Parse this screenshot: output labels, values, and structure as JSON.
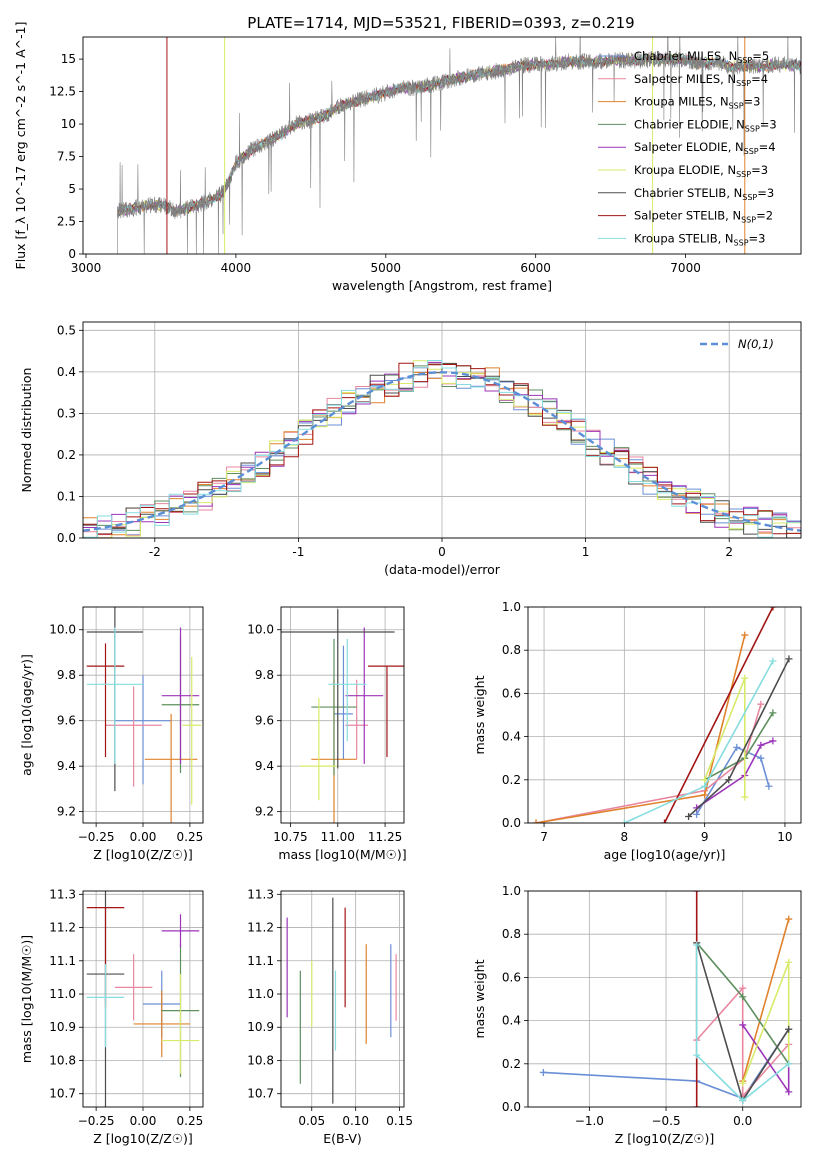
{
  "figure": {
    "title": "PLATE=1714, MJD=53521, FIBERID=0393, z=0.219"
  },
  "colors": {
    "Chabrier MILES": "#6b8fd6",
    "Salpeter MILES": "#e8879f",
    "Kroupa MILES": "#e0822b",
    "Chabrier ELODIE": "#5e8f5e",
    "Salpeter ELODIE": "#9b34b8",
    "Kroupa ELODIE": "#d9ea6a",
    "Chabrier STELIB": "#4d4d4d",
    "Salpeter STELIB": "#a31515",
    "Kroupa STELIB": "#86dde0",
    "gaussian": "#5b8fd6",
    "data": "#808080"
  },
  "chart_data": [
    {
      "id": "spectrum",
      "type": "line",
      "title": "PLATE=1714, MJD=53521, FIBERID=0393, z=0.219",
      "xlabel": "wavelength [Angstrom, rest frame]",
      "ylabel": "Flux [f_λ 10^-17 erg cm^-2 s^-1 A^-1]",
      "xlim": [
        2980,
        7770
      ],
      "ylim": [
        0,
        16.7
      ],
      "xticks": [
        3000,
        4000,
        5000,
        6000,
        7000
      ],
      "yticks": [
        0.0,
        2.5,
        5.0,
        7.5,
        10.0,
        12.5,
        15.0
      ],
      "grid": false,
      "legend_position": "top-right",
      "continuum": [
        [
          3210,
          3.3
        ],
        [
          3300,
          3.5
        ],
        [
          3450,
          3.8
        ],
        [
          3520,
          3.7
        ],
        [
          3600,
          3.3
        ],
        [
          3700,
          3.6
        ],
        [
          3800,
          4.0
        ],
        [
          3900,
          4.6
        ],
        [
          3950,
          5.5
        ],
        [
          4000,
          7.0
        ],
        [
          4100,
          8.0
        ],
        [
          4200,
          8.6
        ],
        [
          4300,
          9.2
        ],
        [
          4400,
          10.0
        ],
        [
          4500,
          10.3
        ],
        [
          4600,
          10.7
        ],
        [
          4700,
          11.4
        ],
        [
          4800,
          11.8
        ],
        [
          4900,
          12.1
        ],
        [
          5000,
          12.4
        ],
        [
          5100,
          12.8
        ],
        [
          5200,
          12.8
        ],
        [
          5300,
          13.0
        ],
        [
          5400,
          13.3
        ],
        [
          5500,
          13.6
        ],
        [
          5600,
          13.8
        ],
        [
          5700,
          14.0
        ],
        [
          5800,
          14.2
        ],
        [
          5900,
          14.5
        ],
        [
          6000,
          14.6
        ],
        [
          6100,
          14.6
        ],
        [
          6200,
          14.8
        ],
        [
          6300,
          14.8
        ],
        [
          6400,
          14.8
        ],
        [
          6500,
          14.9
        ],
        [
          6600,
          14.9
        ],
        [
          6700,
          14.9
        ],
        [
          6800,
          15.0
        ],
        [
          6900,
          15.0
        ],
        [
          7000,
          14.9
        ],
        [
          7100,
          14.7
        ],
        [
          7200,
          14.8
        ],
        [
          7300,
          14.4
        ],
        [
          7400,
          14.5
        ],
        [
          7500,
          14.4
        ],
        [
          7600,
          14.6
        ],
        [
          7770,
          14.5
        ]
      ],
      "series": [
        {
          "name": "Chabrier MILES",
          "nssp": "5"
        },
        {
          "name": "Salpeter MILES",
          "nssp": "4"
        },
        {
          "name": "Kroupa MILES",
          "nssp": "3"
        },
        {
          "name": "Chabrier ELODIE",
          "nssp": "3"
        },
        {
          "name": "Salpeter ELODIE",
          "nssp": "4"
        },
        {
          "name": "Kroupa ELODIE",
          "nssp": "3"
        },
        {
          "name": "Chabrier STELIB",
          "nssp": "3"
        },
        {
          "name": "Salpeter STELIB",
          "nssp": "2"
        },
        {
          "name": "Kroupa STELIB",
          "nssp": "3"
        }
      ]
    },
    {
      "id": "residuals",
      "type": "line",
      "xlabel": "(data-model)/error",
      "ylabel": "Normed distribution",
      "xlim": [
        -2.5,
        2.5
      ],
      "ylim": [
        0,
        0.52
      ],
      "xticks": [
        -2,
        -1,
        0,
        1,
        2
      ],
      "yticks": [
        0.0,
        0.1,
        0.2,
        0.3,
        0.4,
        0.5
      ],
      "grid": true,
      "legend": "N(0,1)",
      "legend_position": "top-right"
    },
    {
      "id": "z-age",
      "type": "scatter",
      "xlabel": "Z [log10(Z/Z☉)]",
      "ylabel": "age [log10(age/yr)]",
      "xlim": [
        -0.32,
        0.32
      ],
      "ylim": [
        9.15,
        10.1
      ],
      "xticks": [
        -0.25,
        0.0,
        0.25
      ],
      "xticklabels": [
        "−0.25",
        "0.00",
        "0.25"
      ],
      "yticks": [
        9.2,
        9.4,
        9.6,
        9.8,
        10.0
      ],
      "grid": true,
      "points": [
        {
          "series": "Chabrier MILES",
          "x": 0.0,
          "y": 9.6,
          "xerr": 0.15,
          "yerr": [
            0.28,
            0.2
          ]
        },
        {
          "series": "Salpeter MILES",
          "x": -0.05,
          "y": 9.58,
          "xerr": 0.15,
          "yerr": [
            0.27,
            0.17
          ]
        },
        {
          "series": "Kroupa MILES",
          "x": 0.15,
          "y": 9.43,
          "xerr": 0.14,
          "yerr": [
            0.5,
            0.2
          ]
        },
        {
          "series": "Chabrier ELODIE",
          "x": 0.2,
          "y": 9.67,
          "xerr": 0.1,
          "yerr": [
            0.3,
            0.3
          ]
        },
        {
          "series": "Salpeter ELODIE",
          "x": 0.2,
          "y": 9.71,
          "xerr": 0.1,
          "yerr": [
            0.3,
            0.3
          ]
        },
        {
          "series": "Kroupa ELODIE",
          "x": 0.26,
          "y": 9.58,
          "xerr": 0.05,
          "yerr": [
            0.35,
            0.3
          ]
        },
        {
          "series": "Chabrier STELIB",
          "x": -0.15,
          "y": 9.99,
          "xerr": 0.15,
          "yerr": [
            0.7,
            0.15
          ]
        },
        {
          "series": "Salpeter STELIB",
          "x": -0.2,
          "y": 9.84,
          "xerr": 0.1,
          "yerr": [
            0.4,
            0.1
          ]
        },
        {
          "series": "Kroupa STELIB",
          "x": -0.15,
          "y": 9.76,
          "xerr": 0.15,
          "yerr": [
            0.35,
            0.25
          ]
        }
      ]
    },
    {
      "id": "mass-age",
      "type": "scatter",
      "xlabel": "mass [log10(M/M☉)]",
      "ylabel": "",
      "xlim": [
        10.7,
        11.35
      ],
      "ylim": [
        9.15,
        10.1
      ],
      "xticks": [
        10.75,
        11.0,
        11.25
      ],
      "xticklabels": [
        "10.75",
        "11.00",
        "11.25"
      ],
      "yticks": [
        9.2,
        9.4,
        9.6,
        9.8,
        10.0
      ],
      "grid": true,
      "points": [
        {
          "series": "Chabrier MILES",
          "x": 11.03,
          "y": 9.63,
          "xerr": 0.05,
          "yerr": [
            0.2,
            0.3
          ]
        },
        {
          "series": "Salpeter MILES",
          "x": 11.1,
          "y": 9.58,
          "xerr": 0.06,
          "yerr": [
            0.15,
            0.2
          ]
        },
        {
          "series": "Kroupa MILES",
          "x": 10.98,
          "y": 9.43,
          "xerr": 0.12,
          "yerr": [
            0.3,
            0.35
          ]
        },
        {
          "series": "Chabrier ELODIE",
          "x": 10.98,
          "y": 9.66,
          "xerr": 0.12,
          "yerr": [
            0.3,
            0.3
          ]
        },
        {
          "series": "Salpeter ELODIE",
          "x": 11.14,
          "y": 9.71,
          "xerr": 0.1,
          "yerr": [
            0.3,
            0.3
          ]
        },
        {
          "series": "Kroupa ELODIE",
          "x": 10.9,
          "y": 9.4,
          "xerr": 0.1,
          "yerr": [
            0.15,
            0.3
          ]
        },
        {
          "series": "Chabrier STELIB",
          "x": 11.0,
          "y": 9.99,
          "xerr": 0.3,
          "yerr": [
            0.6,
            0.1
          ]
        },
        {
          "series": "Salpeter STELIB",
          "x": 11.26,
          "y": 9.84,
          "xerr": 0.1,
          "yerr": [
            0.4,
            0.0
          ]
        },
        {
          "series": "Kroupa STELIB",
          "x": 11.05,
          "y": 9.76,
          "xerr": 0.1,
          "yerr": [
            0.25,
            0.2
          ]
        }
      ]
    },
    {
      "id": "age-weight",
      "type": "line",
      "xlabel": "age [log10(age/yr)]",
      "ylabel": "mass weight",
      "xlim": [
        6.8,
        10.2
      ],
      "ylim": [
        0,
        1
      ],
      "xticks": [
        7,
        8,
        9,
        10
      ],
      "yticks": [
        0.0,
        0.2,
        0.4,
        0.6,
        0.8,
        1.0
      ],
      "grid": true,
      "series": [
        {
          "name": "Chabrier MILES",
          "points": [
            [
              8.9,
              0.04
            ],
            [
              9.4,
              0.35
            ],
            [
              9.7,
              0.3
            ],
            [
              9.8,
              0.17
            ]
          ]
        },
        {
          "name": "Salpeter MILES",
          "points": [
            [
              6.9,
              0.0
            ],
            [
              9.0,
              0.15
            ],
            [
              9.5,
              0.3
            ],
            [
              9.7,
              0.55
            ]
          ]
        },
        {
          "name": "Kroupa MILES",
          "points": [
            [
              6.9,
              0.0
            ],
            [
              9.0,
              0.13
            ],
            [
              9.5,
              0.87
            ]
          ]
        },
        {
          "name": "Chabrier ELODIE",
          "points": [
            [
              9.0,
              0.2
            ],
            [
              9.5,
              0.3
            ],
            [
              9.85,
              0.51
            ]
          ]
        },
        {
          "name": "Salpeter ELODIE",
          "points": [
            [
              8.9,
              0.07
            ],
            [
              9.5,
              0.22
            ],
            [
              9.7,
              0.36
            ],
            [
              9.85,
              0.38
            ]
          ]
        },
        {
          "name": "Kroupa ELODIE",
          "points": [
            [
              9.0,
              0.2
            ],
            [
              9.5,
              0.67
            ],
            [
              9.5,
              0.12
            ]
          ]
        },
        {
          "name": "Chabrier STELIB",
          "points": [
            [
              8.8,
              0.03
            ],
            [
              9.3,
              0.2
            ],
            [
              10.05,
              0.76
            ]
          ]
        },
        {
          "name": "Salpeter STELIB",
          "points": [
            [
              8.5,
              0.0
            ],
            [
              9.85,
              1.0
            ]
          ]
        },
        {
          "name": "Kroupa STELIB",
          "points": [
            [
              8.0,
              0.0
            ],
            [
              9.0,
              0.17
            ],
            [
              9.85,
              0.75
            ]
          ]
        }
      ]
    },
    {
      "id": "z-mass",
      "type": "scatter",
      "xlabel": "Z [log10(Z/Z☉)]",
      "ylabel": "mass [log10(M/M☉)]",
      "xlim": [
        -0.32,
        0.32
      ],
      "ylim": [
        10.66,
        11.31
      ],
      "xticks": [
        -0.25,
        0.0,
        0.25
      ],
      "xticklabels": [
        "−0.25",
        "0.00",
        "0.25"
      ],
      "yticks": [
        10.7,
        10.8,
        10.9,
        11.0,
        11.1,
        11.2,
        11.3
      ],
      "grid": true,
      "points": [
        {
          "series": "Chabrier MILES",
          "x": 0.1,
          "y": 10.97,
          "xerr": 0.1,
          "yerr": [
            0.1,
            0.1
          ]
        },
        {
          "series": "Salpeter MILES",
          "x": -0.05,
          "y": 11.02,
          "xerr": 0.1,
          "yerr": [
            0.1,
            0.1
          ]
        },
        {
          "series": "Kroupa MILES",
          "x": 0.1,
          "y": 10.91,
          "xerr": 0.15,
          "yerr": [
            0.1,
            0.1
          ]
        },
        {
          "series": "Chabrier ELODIE",
          "x": 0.2,
          "y": 10.95,
          "xerr": 0.1,
          "yerr": [
            0.2,
            0.2
          ]
        },
        {
          "series": "Salpeter ELODIE",
          "x": 0.2,
          "y": 11.19,
          "xerr": 0.1,
          "yerr": [
            0.05,
            0.05
          ]
        },
        {
          "series": "Kroupa ELODIE",
          "x": 0.2,
          "y": 10.86,
          "xerr": 0.1,
          "yerr": [
            0.1,
            0.2
          ]
        },
        {
          "series": "Chabrier STELIB",
          "x": -0.2,
          "y": 11.06,
          "xerr": 0.1,
          "yerr": [
            0.4,
            0.25
          ]
        },
        {
          "series": "Salpeter STELIB",
          "x": -0.2,
          "y": 11.26,
          "xerr": 0.1,
          "yerr": [
            0.3,
            0.0
          ]
        },
        {
          "series": "Kroupa STELIB",
          "x": -0.2,
          "y": 10.99,
          "xerr": 0.1,
          "yerr": [
            0.15,
            0.1
          ]
        }
      ]
    },
    {
      "id": "ebv-mass",
      "type": "scatter",
      "xlabel": "E(B-V)",
      "ylabel": "",
      "xlim": [
        0.015,
        0.155
      ],
      "ylim": [
        10.66,
        11.31
      ],
      "xticks": [
        0.05,
        0.1,
        0.15
      ],
      "xticklabels": [
        "0.05",
        "0.10",
        "0.15"
      ],
      "yticks": [
        10.7,
        10.8,
        10.9,
        11.0,
        11.1,
        11.2,
        11.3
      ],
      "grid": true,
      "points": [
        {
          "series": "Chabrier MILES",
          "x": 0.14,
          "y": 11.01,
          "yerr": [
            0.14,
            0.14
          ]
        },
        {
          "series": "Salpeter MILES",
          "x": 0.146,
          "y": 11.02,
          "yerr": [
            0.1,
            0.1
          ]
        },
        {
          "series": "Kroupa MILES",
          "x": 0.112,
          "y": 11.0,
          "yerr": [
            0.15,
            0.15
          ]
        },
        {
          "series": "Chabrier ELODIE",
          "x": 0.037,
          "y": 10.9,
          "yerr": [
            0.17,
            0.17
          ]
        },
        {
          "series": "Salpeter ELODIE",
          "x": 0.022,
          "y": 11.08,
          "yerr": [
            0.15,
            0.15
          ]
        },
        {
          "series": "Kroupa ELODIE",
          "x": 0.05,
          "y": 11.0,
          "yerr": [
            0.1,
            0.1
          ]
        },
        {
          "series": "Chabrier STELIB",
          "x": 0.074,
          "y": 10.98,
          "yerr": [
            0.31,
            0.31
          ]
        },
        {
          "series": "Salpeter STELIB",
          "x": 0.088,
          "y": 11.11,
          "yerr": [
            0.15,
            0.15
          ]
        },
        {
          "series": "Kroupa STELIB",
          "x": 0.077,
          "y": 10.95,
          "yerr": [
            0.12,
            0.12
          ]
        }
      ]
    },
    {
      "id": "z-weight",
      "type": "line",
      "xlabel": "Z [log10(Z/Z☉)]",
      "ylabel": "mass weight",
      "xlim": [
        -1.4,
        0.38
      ],
      "ylim": [
        0,
        1
      ],
      "xticks": [
        -1.0,
        -0.5,
        0.0
      ],
      "xticklabels": [
        "−1.0",
        "−0.5",
        "0.0"
      ],
      "yticks": [
        0.0,
        0.2,
        0.4,
        0.6,
        0.8,
        1.0
      ],
      "grid": true,
      "series": [
        {
          "name": "Chabrier MILES",
          "points": [
            [
              -1.3,
              0.16
            ],
            [
              -0.3,
              0.12
            ],
            [
              0.0,
              0.04
            ],
            [
              0.3,
              0.36
            ]
          ]
        },
        {
          "name": "Salpeter MILES",
          "points": [
            [
              -0.3,
              0.31
            ],
            [
              0.0,
              0.55
            ],
            [
              0.0,
              0.05
            ],
            [
              0.3,
              0.29
            ]
          ]
        },
        {
          "name": "Kroupa MILES",
          "points": [
            [
              0.0,
              0.12
            ],
            [
              0.3,
              0.87
            ]
          ]
        },
        {
          "name": "Chabrier ELODIE",
          "points": [
            [
              -0.3,
              0.76
            ],
            [
              0.0,
              0.51
            ],
            [
              0.3,
              0.2
            ]
          ]
        },
        {
          "name": "Salpeter ELODIE",
          "points": [
            [
              0.0,
              0.38
            ],
            [
              0.3,
              0.07
            ],
            [
              0.3,
              0.2
            ]
          ]
        },
        {
          "name": "Kroupa ELODIE",
          "points": [
            [
              0.0,
              0.11
            ],
            [
              0.3,
              0.67
            ],
            [
              0.3,
              0.2
            ]
          ]
        },
        {
          "name": "Chabrier STELIB",
          "points": [
            [
              -0.3,
              0.76
            ],
            [
              0.0,
              0.03
            ],
            [
              0.3,
              0.36
            ]
          ]
        },
        {
          "name": "Salpeter STELIB",
          "points": [
            [
              -0.3,
              0.0
            ],
            [
              -0.3,
              1.0
            ]
          ]
        },
        {
          "name": "Kroupa STELIB",
          "points": [
            [
              -0.3,
              0.75
            ],
            [
              -0.3,
              0.24
            ],
            [
              0.0,
              0.03
            ],
            [
              0.3,
              0.2
            ]
          ]
        }
      ]
    }
  ]
}
